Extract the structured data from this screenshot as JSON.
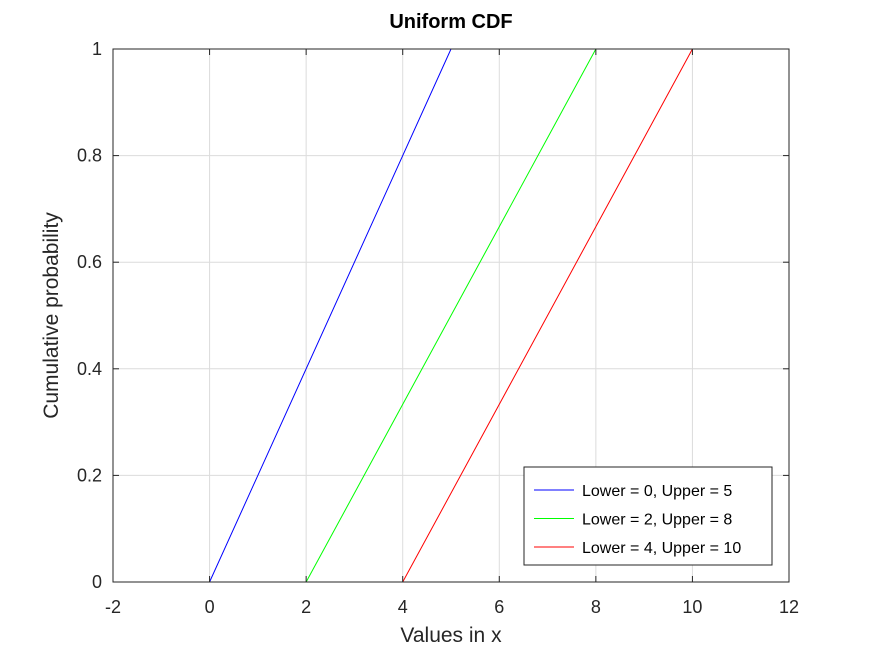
{
  "chart_data": {
    "type": "line",
    "title": "Uniform CDF",
    "xlabel": "Values in x",
    "ylabel": "Cumulative probability",
    "xlim": [
      -2,
      12
    ],
    "ylim": [
      0,
      1
    ],
    "x_ticks": [
      -2,
      0,
      2,
      4,
      6,
      8,
      10,
      12
    ],
    "y_ticks": [
      0,
      0.2,
      0.4,
      0.6,
      0.8,
      1
    ],
    "x_tick_labels": [
      "-2",
      "0",
      "2",
      "4",
      "6",
      "8",
      "10",
      "12"
    ],
    "y_tick_labels": [
      "0",
      "0.2",
      "0.4",
      "0.6",
      "0.8",
      "1"
    ],
    "grid": true,
    "legend_position": "bottom-right",
    "series": [
      {
        "name": "Lower = 0, Upper = 5",
        "color": "#0000ff",
        "x": [
          -1,
          0,
          5,
          12
        ],
        "y": [
          0,
          0,
          1,
          1
        ]
      },
      {
        "name": "Lower = 2, Upper = 8",
        "color": "#00ff00",
        "x": [
          -1,
          2,
          8,
          12
        ],
        "y": [
          0,
          0,
          1,
          1
        ]
      },
      {
        "name": "Lower = 4, Upper = 10",
        "color": "#ff0000",
        "x": [
          -1,
          4,
          10,
          12
        ],
        "y": [
          0,
          0,
          1,
          1
        ]
      }
    ]
  }
}
